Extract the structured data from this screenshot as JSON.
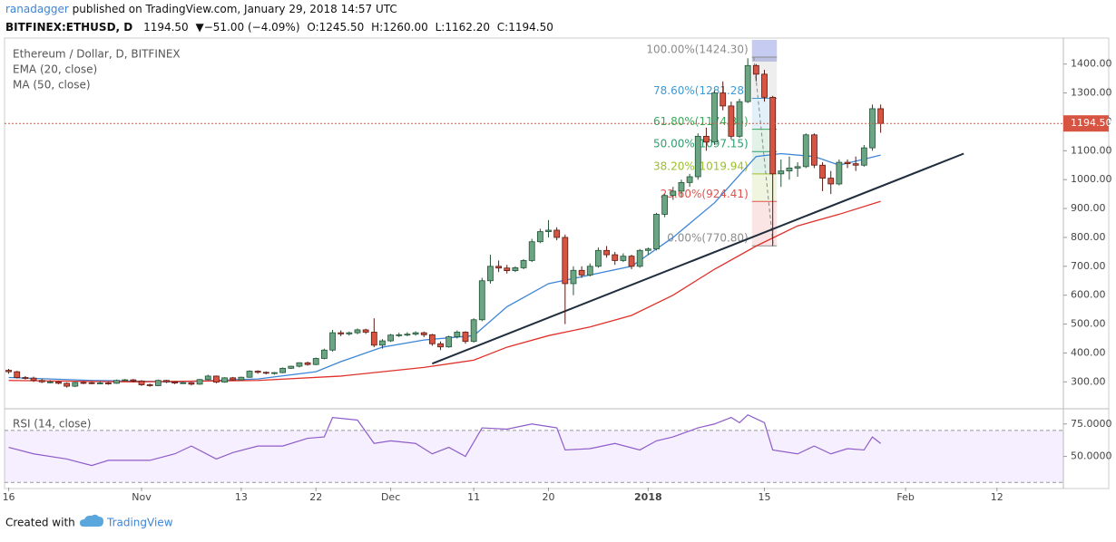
{
  "header": {
    "author": "ranadagger",
    "published": "published on TradingView.com, January 29, 2018 14:57 UTC",
    "symbol": "BITFINEX:ETHUSD, D",
    "price": "1194.50",
    "change": "▼−51.00 (−4.09%)",
    "open": "O:1245.50",
    "high": "H:1260.00",
    "low": "L:1162.20",
    "close": "C:1194.50"
  },
  "chart_data": {
    "type": "candlestick",
    "title": "Ethereum / Dollar, D, BITFINEX",
    "up_color": "#6ba583",
    "down_color": "#d75442",
    "ohlc": [
      [
        340,
        345,
        328,
        335
      ],
      [
        335,
        338,
        312,
        315
      ],
      [
        315,
        320,
        308,
        313
      ],
      [
        313,
        318,
        300,
        305
      ],
      [
        305,
        310,
        296,
        300
      ],
      [
        300,
        306,
        295,
        300
      ],
      [
        300,
        303,
        292,
        295
      ],
      [
        295,
        298,
        280,
        285
      ],
      [
        285,
        300,
        282,
        298
      ],
      [
        298,
        302,
        292,
        297
      ],
      [
        297,
        300,
        292,
        296
      ],
      [
        296,
        301,
        292,
        296
      ],
      [
        296,
        299,
        290,
        295
      ],
      [
        295,
        308,
        293,
        305
      ],
      [
        305,
        310,
        302,
        307
      ],
      [
        307,
        310,
        298,
        303
      ],
      [
        303,
        306,
        286,
        290
      ],
      [
        290,
        294,
        283,
        287
      ],
      [
        287,
        308,
        285,
        305
      ],
      [
        305,
        307,
        296,
        300
      ],
      [
        300,
        302,
        292,
        296
      ],
      [
        296,
        300,
        293,
        297
      ],
      [
        297,
        299,
        288,
        292
      ],
      [
        292,
        310,
        290,
        308
      ],
      [
        308,
        325,
        305,
        320
      ],
      [
        320,
        322,
        295,
        299
      ],
      [
        299,
        316,
        297,
        314
      ],
      [
        314,
        317,
        304,
        307
      ],
      [
        307,
        318,
        305,
        316
      ],
      [
        316,
        340,
        314,
        337
      ],
      [
        337,
        340,
        328,
        333
      ],
      [
        333,
        336,
        326,
        330
      ],
      [
        330,
        334,
        325,
        332
      ],
      [
        332,
        350,
        330,
        347
      ],
      [
        347,
        356,
        345,
        354
      ],
      [
        354,
        368,
        350,
        366
      ],
      [
        366,
        370,
        356,
        360
      ],
      [
        360,
        384,
        358,
        381
      ],
      [
        381,
        415,
        378,
        410
      ],
      [
        410,
        480,
        405,
        470
      ],
      [
        470,
        478,
        458,
        466
      ],
      [
        466,
        474,
        460,
        470
      ],
      [
        470,
        485,
        465,
        480
      ],
      [
        480,
        484,
        466,
        472
      ],
      [
        472,
        520,
        420,
        427
      ],
      [
        427,
        448,
        415,
        442
      ],
      [
        442,
        466,
        438,
        462
      ],
      [
        462,
        470,
        455,
        463
      ],
      [
        463,
        472,
        458,
        465
      ],
      [
        465,
        475,
        460,
        470
      ],
      [
        470,
        474,
        455,
        463
      ],
      [
        463,
        466,
        425,
        432
      ],
      [
        432,
        440,
        410,
        421
      ],
      [
        421,
        460,
        418,
        456
      ],
      [
        456,
        478,
        450,
        472
      ],
      [
        472,
        475,
        432,
        440
      ],
      [
        440,
        520,
        436,
        515
      ],
      [
        515,
        660,
        510,
        650
      ],
      [
        650,
        740,
        640,
        700
      ],
      [
        700,
        720,
        680,
        694
      ],
      [
        694,
        705,
        675,
        685
      ],
      [
        685,
        700,
        680,
        695
      ],
      [
        695,
        725,
        690,
        720
      ],
      [
        720,
        795,
        715,
        785
      ],
      [
        785,
        830,
        780,
        820
      ],
      [
        820,
        860,
        800,
        825
      ],
      [
        825,
        835,
        790,
        800
      ],
      [
        800,
        810,
        500,
        640
      ],
      [
        640,
        700,
        600,
        686
      ],
      [
        686,
        700,
        660,
        670
      ],
      [
        670,
        710,
        665,
        700
      ],
      [
        700,
        765,
        695,
        755
      ],
      [
        755,
        770,
        730,
        740
      ],
      [
        740,
        750,
        705,
        720
      ],
      [
        720,
        745,
        715,
        735
      ],
      [
        735,
        740,
        690,
        700
      ],
      [
        700,
        760,
        695,
        755
      ],
      [
        755,
        765,
        740,
        760
      ],
      [
        760,
        885,
        755,
        880
      ],
      [
        880,
        950,
        870,
        945
      ],
      [
        945,
        975,
        930,
        960
      ],
      [
        960,
        1000,
        940,
        990
      ],
      [
        990,
        1020,
        975,
        1010
      ],
      [
        1010,
        1160,
        1000,
        1150
      ],
      [
        1150,
        1180,
        1100,
        1130
      ],
      [
        1130,
        1310,
        1120,
        1300
      ],
      [
        1300,
        1340,
        1240,
        1255
      ],
      [
        1255,
        1270,
        1140,
        1150
      ],
      [
        1150,
        1280,
        1145,
        1270
      ],
      [
        1270,
        1420,
        1265,
        1395
      ],
      [
        1395,
        1400,
        1340,
        1365
      ],
      [
        1365,
        1380,
        1270,
        1285
      ],
      [
        1285,
        1290,
        770,
        1020
      ],
      [
        1020,
        1070,
        975,
        1030
      ],
      [
        1030,
        1080,
        1000,
        1040
      ],
      [
        1040,
        1060,
        1010,
        1045
      ],
      [
        1045,
        1160,
        1040,
        1155
      ],
      [
        1155,
        1160,
        1040,
        1050
      ],
      [
        1050,
        1060,
        960,
        1005
      ],
      [
        1005,
        1030,
        950,
        985
      ],
      [
        985,
        1070,
        980,
        1060
      ],
      [
        1060,
        1070,
        1040,
        1055
      ],
      [
        1055,
        1080,
        1030,
        1050
      ],
      [
        1050,
        1120,
        1045,
        1110
      ],
      [
        1110,
        1260,
        1100,
        1245.5
      ],
      [
        1245.5,
        1260,
        1162.2,
        1194.5
      ]
    ],
    "series": [
      {
        "name": "EMA (20, close)",
        "color": "#3d85d6",
        "x": [
          0,
          10,
          20,
          30,
          37,
          40,
          45,
          50,
          56,
          60,
          65,
          70,
          75,
          80,
          85,
          90,
          93,
          97,
          100,
          105
        ],
        "values": [
          315,
          305,
          300,
          310,
          335,
          370,
          420,
          445,
          460,
          560,
          640,
          670,
          700,
          800,
          920,
          1080,
          1090,
          1080,
          1050,
          1085
        ]
      },
      {
        "name": "MA (50, close)",
        "color": "#e0302a",
        "x": [
          0,
          15,
          30,
          40,
          50,
          56,
          60,
          65,
          70,
          75,
          80,
          85,
          90,
          95,
          100,
          105
        ],
        "values": [
          305,
          300,
          305,
          320,
          350,
          375,
          420,
          460,
          490,
          530,
          600,
          690,
          770,
          840,
          880,
          925
        ]
      }
    ],
    "xlim": [
      -0.5,
      127
    ],
    "xticks": [
      {
        "value": 0,
        "label": "16"
      },
      {
        "value": 16,
        "label": "Nov"
      },
      {
        "value": 28,
        "label": "13"
      },
      {
        "value": 37,
        "label": "22"
      },
      {
        "value": 46,
        "label": "Dec"
      },
      {
        "value": 56,
        "label": "11"
      },
      {
        "value": 65,
        "label": "20"
      },
      {
        "value": 77,
        "label": "2018"
      },
      {
        "value": 91,
        "label": "15"
      },
      {
        "value": 108,
        "label": "Feb"
      },
      {
        "value": 119,
        "label": "12"
      }
    ],
    "ylim": [
      210,
      1490
    ],
    "yticks": [
      {
        "value": 300,
        "label": "300.00"
      },
      {
        "value": 400,
        "label": "400.00"
      },
      {
        "value": 500,
        "label": "500.00"
      },
      {
        "value": 600,
        "label": "600.00"
      },
      {
        "value": 700,
        "label": "700.00"
      },
      {
        "value": 800,
        "label": "800.00"
      },
      {
        "value": 900,
        "label": "900.00"
      },
      {
        "value": 1000,
        "label": "1000.00"
      },
      {
        "value": 1100,
        "label": "1100.00"
      },
      {
        "value": 1200,
        "label": "1200.00"
      },
      {
        "value": 1300,
        "label": "1300.00"
      },
      {
        "value": 1400,
        "label": "1400.00"
      }
    ],
    "last_price": {
      "value": 1194.5,
      "label": "1194.50",
      "color": "#d75442"
    },
    "fibonacci": {
      "x": [
        89.5,
        92.5
      ],
      "levels": [
        {
          "value": 1424.3,
          "label": "100.00%(1424.30)",
          "color": "#8c8c8c"
        },
        {
          "value": 1281.28,
          "label": "78.60%(1281.28)",
          "color": "#3d9bd6"
        },
        {
          "value": 1174.35,
          "label": "61.80%(1174.35)",
          "color": "#3aaa5c"
        },
        {
          "value": 1097.15,
          "label": "50.00%(1097.15)",
          "color": "#2e9e6e"
        },
        {
          "value": 1019.94,
          "label": "38.20%(1019.94)",
          "color": "#9cbf2b"
        },
        {
          "value": 924.41,
          "label": "23.60%(924.41)",
          "color": "#e0524d"
        },
        {
          "value": 770.8,
          "label": "0.00%(770.80)",
          "color": "#8c8c8c"
        }
      ]
    },
    "trendline": {
      "x": [
        51,
        115
      ],
      "values": [
        363,
        1090
      ],
      "color": "#1f2d3d"
    },
    "rsi": {
      "name": "RSI (14, close)",
      "color": "#8e5cc9",
      "x": [
        0,
        3,
        7,
        10,
        12,
        17,
        20,
        22,
        25,
        27,
        30,
        33,
        36,
        38,
        39,
        42,
        44,
        46,
        49,
        51,
        53,
        55,
        57,
        60,
        63,
        65,
        66,
        67,
        70,
        73,
        76,
        78,
        80,
        83,
        85,
        87,
        88,
        89,
        91,
        92,
        95,
        97,
        99,
        101,
        103,
        104,
        105
      ],
      "values": [
        57,
        52,
        48,
        43,
        47,
        47,
        52,
        58,
        48,
        53,
        58,
        58,
        64,
        65,
        80,
        78,
        60,
        62,
        60,
        52,
        57,
        50,
        72,
        71,
        75,
        73,
        72,
        55,
        56,
        60,
        55,
        62,
        65,
        72,
        75,
        80,
        76,
        82,
        76,
        55,
        52,
        58,
        52,
        56,
        55,
        65,
        60
      ],
      "ylim": [
        26,
        86
      ],
      "yticks": [
        {
          "value": 75,
          "label": "75.0000"
        },
        {
          "value": 50,
          "label": "50.0000"
        }
      ],
      "bands": [
        70,
        30
      ]
    }
  },
  "footer": {
    "text": "Created with",
    "brand": "TradingView"
  }
}
